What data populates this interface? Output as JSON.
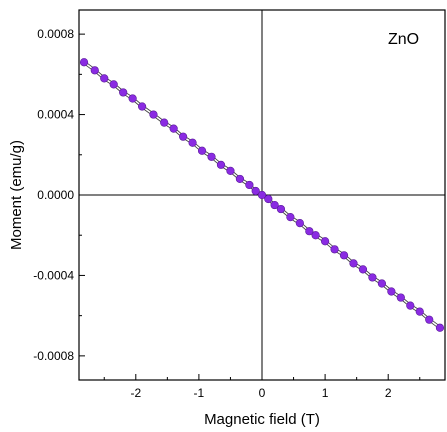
{
  "chart_data": {
    "type": "scatter",
    "title": "",
    "xlabel": "Magnetic field (T)",
    "ylabel": "Moment (emu/g)",
    "annotation": "ZnO",
    "xlim": [
      -2.9,
      2.9
    ],
    "ylim": [
      -0.00092,
      0.00092
    ],
    "xticks": [
      -2,
      -1,
      0,
      1,
      2
    ],
    "xtick_labels": [
      "-2",
      "-1",
      "0",
      "1",
      "2"
    ],
    "yticks": [
      -0.0008,
      -0.0004,
      0.0,
      0.0004,
      0.0008
    ],
    "ytick_labels": [
      "-0.0008",
      "-0.0004",
      "0.0000",
      "0.0004",
      "0.0008"
    ],
    "grid": false,
    "reference_lines": {
      "x": 0,
      "y": 0
    },
    "marker_color": "#8a2be2",
    "line_color": "#444444",
    "series": [
      {
        "x": [
          -2.82,
          -2.65,
          -2.5,
          -2.35,
          -2.2,
          -2.05,
          -1.9,
          -1.72,
          -1.55,
          -1.4,
          -1.25,
          -1.1,
          -0.95,
          -0.8,
          -0.65,
          -0.5,
          -0.35,
          -0.2,
          -0.1,
          0.0,
          0.1,
          0.2,
          0.3,
          0.45,
          0.6,
          0.75,
          0.85,
          1.0,
          1.15,
          1.3,
          1.45,
          1.6,
          1.75,
          1.9,
          2.05,
          2.2,
          2.35,
          2.5,
          2.65,
          2.82
        ],
        "y": [
          0.00066,
          0.00062,
          0.00058,
          0.00055,
          0.00051,
          0.00048,
          0.00044,
          0.0004,
          0.00036,
          0.00033,
          0.00029,
          0.00026,
          0.00022,
          0.00019,
          0.00015,
          0.00012,
          8e-05,
          5e-05,
          2e-05,
          0.0,
          -2e-05,
          -5e-05,
          -7e-05,
          -0.00011,
          -0.00014,
          -0.00018,
          -0.0002,
          -0.00023,
          -0.00027,
          -0.0003,
          -0.00034,
          -0.00037,
          -0.00041,
          -0.00044,
          -0.00048,
          -0.00051,
          -0.00055,
          -0.00058,
          -0.00062,
          -0.00066
        ]
      }
    ]
  }
}
